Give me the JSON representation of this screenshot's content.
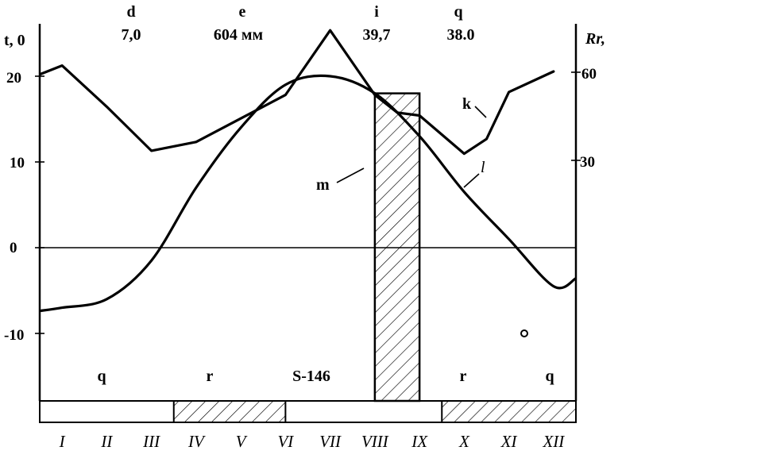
{
  "header": {
    "letters": [
      "d",
      "e",
      "i",
      "q"
    ],
    "values": [
      "7,0",
      "604 мм",
      "39,7",
      "38.0"
    ]
  },
  "axes": {
    "left_title": "t, 0",
    "right_title": "Rr,",
    "left_ticks": [
      "20",
      "10",
      "0",
      "-10"
    ],
    "right_ticks": [
      "60",
      "30"
    ]
  },
  "curve_labels": {
    "k": "k",
    "l": "l",
    "m": "m"
  },
  "bottom_labels": [
    "q",
    "r",
    "S-146",
    "r",
    "q"
  ],
  "months": [
    "I",
    "II",
    "III",
    "IV",
    "V",
    "VI",
    "VII",
    "VIII",
    "IX",
    "X",
    "XI",
    "XII"
  ],
  "series": {
    "temperature": {
      "months": [
        1,
        2,
        3,
        4,
        5,
        6,
        7,
        8,
        9,
        10,
        11,
        12
      ],
      "values": [
        -7.0,
        -6.0,
        -1.5,
        7.0,
        14.0,
        19.0,
        20.0,
        18.0,
        13.0,
        6.5,
        1.0,
        -4.5
      ]
    },
    "precipitation": {
      "months": [
        0.5,
        1,
        2,
        3,
        4,
        5,
        6,
        7,
        8,
        8.5,
        9,
        10,
        10.5,
        11,
        12
      ],
      "values": [
        59,
        62,
        48,
        33,
        36,
        44,
        52,
        74,
        52,
        46,
        45,
        32,
        37,
        53,
        60
      ]
    }
  },
  "shaded_period": {
    "start_month": 8,
    "end_month": 9
  },
  "bar_segments": [
    {
      "start_month": 3,
      "end_month": 5.5,
      "hatched": true
    },
    {
      "start_month": 9,
      "end_month": 12,
      "hatched": true
    }
  ]
}
